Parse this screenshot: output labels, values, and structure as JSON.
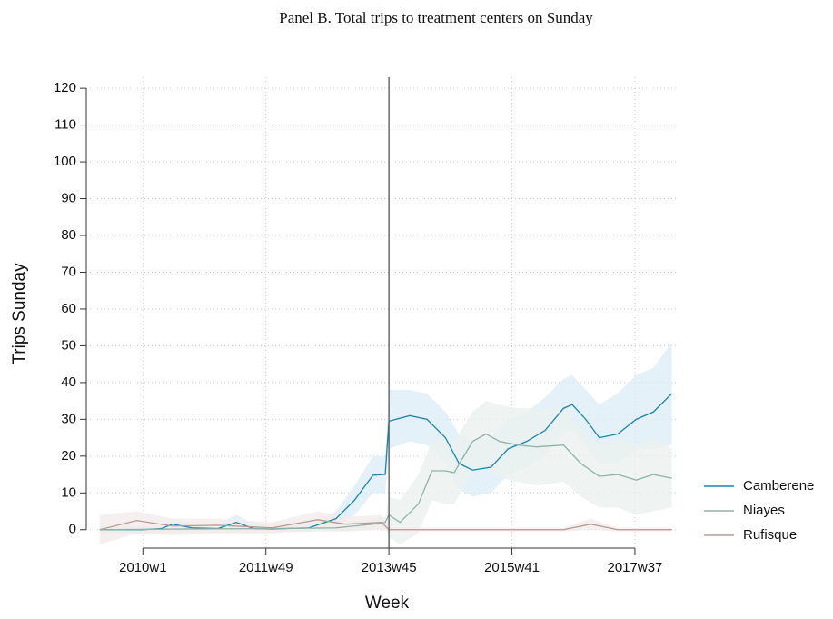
{
  "chart_data": {
    "type": "line",
    "title": "Panel B. Total trips to treatment centers on Sunday",
    "x_label": "Week",
    "y_label": "Trips Sunday",
    "xlim": [
      -46,
      434
    ],
    "ylim": [
      -5,
      123
    ],
    "xticks": [
      {
        "value": 0,
        "label": "2010w1"
      },
      {
        "value": 100,
        "label": "2011w49"
      },
      {
        "value": 200,
        "label": "2013w45"
      },
      {
        "value": 300,
        "label": "2015w41"
      },
      {
        "value": 400,
        "label": "2017w37"
      }
    ],
    "yticks": [
      0,
      10,
      20,
      30,
      40,
      50,
      60,
      70,
      80,
      90,
      100,
      110,
      120
    ],
    "grid": true,
    "reference_line": 200,
    "legend": "right",
    "series": [
      {
        "name": "Camberene",
        "color": "#1a86b0",
        "band_color": "#dcecf7",
        "x": [
          -35,
          0,
          15,
          24,
          40,
          61,
          76,
          90,
          105,
          135,
          157,
          172,
          187,
          197,
          200,
          217,
          231,
          246,
          257,
          268,
          283,
          297,
          312,
          327,
          342,
          349,
          360,
          371,
          386,
          401,
          415,
          430
        ],
        "values": [
          0,
          0,
          0.3,
          1.5,
          0.5,
          0.3,
          2,
          0.3,
          0.2,
          0.5,
          3,
          8,
          14.8,
          15,
          29.5,
          31,
          30,
          25,
          18,
          16.2,
          17,
          22,
          24,
          27,
          33,
          34,
          30,
          25,
          26,
          30,
          32,
          37
        ],
        "lower": [
          -1,
          -1,
          -0.8,
          0,
          -0.5,
          -0.8,
          0,
          -0.8,
          -0.8,
          -0.5,
          1,
          4,
          10,
          10,
          22,
          24,
          23,
          18,
          11,
          9,
          10,
          15,
          17,
          20,
          26,
          27,
          23,
          18,
          18,
          22,
          22,
          23
        ],
        "upper": [
          1,
          1,
          1.5,
          3,
          1.5,
          1.5,
          4,
          1.5,
          1.2,
          1.5,
          5,
          12,
          20,
          20,
          38,
          38,
          37,
          32,
          26,
          24,
          25,
          30,
          32,
          36,
          41,
          42,
          38,
          34,
          37,
          42,
          44,
          51
        ]
      },
      {
        "name": "Niayes",
        "color": "#8fb3a8",
        "band_color": "#e9f0ed",
        "x": [
          -35,
          40,
          105,
          157,
          187,
          197,
          200,
          209,
          224,
          235,
          246,
          253,
          268,
          279,
          290,
          305,
          320,
          342,
          356,
          371,
          386,
          401,
          415,
          430
        ],
        "values": [
          0,
          0.2,
          0.3,
          0.5,
          1.5,
          2,
          4,
          2,
          7,
          16,
          16,
          15.5,
          24,
          26,
          24,
          23,
          22.5,
          23,
          18,
          14.5,
          15,
          13.5,
          15,
          14
        ],
        "lower": [
          -1,
          -0.8,
          -0.7,
          -0.5,
          0,
          0.5,
          -2,
          -4,
          -1,
          8,
          7,
          7,
          16,
          17,
          14,
          13,
          12,
          13,
          9,
          6,
          6,
          4,
          5,
          6
        ],
        "upper": [
          1,
          1.2,
          1.3,
          1.5,
          3,
          3.5,
          9,
          8,
          15,
          24,
          25,
          24,
          32,
          35,
          34,
          33,
          33,
          33,
          27,
          23,
          25,
          23,
          25,
          22
        ]
      },
      {
        "name": "Rufisque",
        "color": "#b99a92",
        "band_color": "#f2ebe9",
        "x": [
          -35,
          -5,
          24,
          61,
          105,
          142,
          165,
          194,
          200,
          260,
          342,
          364,
          386,
          430
        ],
        "values": [
          0,
          2.5,
          1,
          1.2,
          0.5,
          2.7,
          1.5,
          2,
          0,
          0,
          0,
          1.5,
          0,
          0
        ],
        "lower": [
          -4,
          -1,
          -1.5,
          -1,
          -1,
          0,
          -0.5,
          0,
          -0.5,
          -0.5,
          -0.5,
          0,
          -0.5,
          -0.5
        ],
        "upper": [
          4,
          5,
          3,
          3,
          2,
          5,
          3.5,
          4,
          0.5,
          0.5,
          0.5,
          3,
          0.5,
          0.5
        ]
      }
    ]
  }
}
